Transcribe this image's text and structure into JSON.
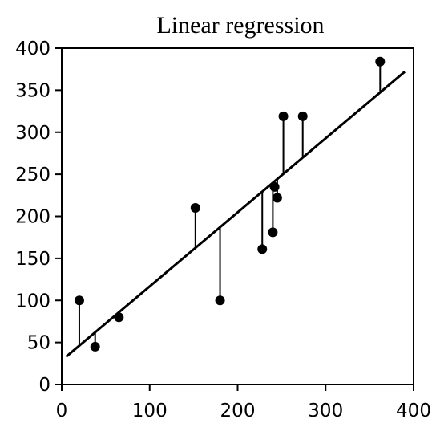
{
  "chart_data": {
    "type": "scatter",
    "title": "Linear regression",
    "xlabel": "",
    "ylabel": "",
    "xlim": [
      0,
      400
    ],
    "ylim": [
      0,
      400
    ],
    "x_ticks": [
      "0",
      "100",
      "200",
      "300",
      "400"
    ],
    "y_ticks": [
      "0",
      "50",
      "100",
      "150",
      "200",
      "250",
      "300",
      "350",
      "400"
    ],
    "grid": false,
    "legend": "none",
    "points": [
      {
        "x": 20,
        "y": 100
      },
      {
        "x": 38,
        "y": 45
      },
      {
        "x": 65,
        "y": 80
      },
      {
        "x": 152,
        "y": 210
      },
      {
        "x": 180,
        "y": 100
      },
      {
        "x": 228,
        "y": 161
      },
      {
        "x": 240,
        "y": 181
      },
      {
        "x": 242,
        "y": 235
      },
      {
        "x": 245,
        "y": 222
      },
      {
        "x": 252,
        "y": 319
      },
      {
        "x": 274,
        "y": 319
      },
      {
        "x": 362,
        "y": 384
      }
    ],
    "regression_line": {
      "start": {
        "x": 5,
        "y": 33
      },
      "end": {
        "x": 390,
        "y": 372
      }
    },
    "show_residuals": true,
    "colors": {
      "axis": "#000000",
      "points": "#000000",
      "line": "#000000",
      "background": "#ffffff"
    }
  }
}
